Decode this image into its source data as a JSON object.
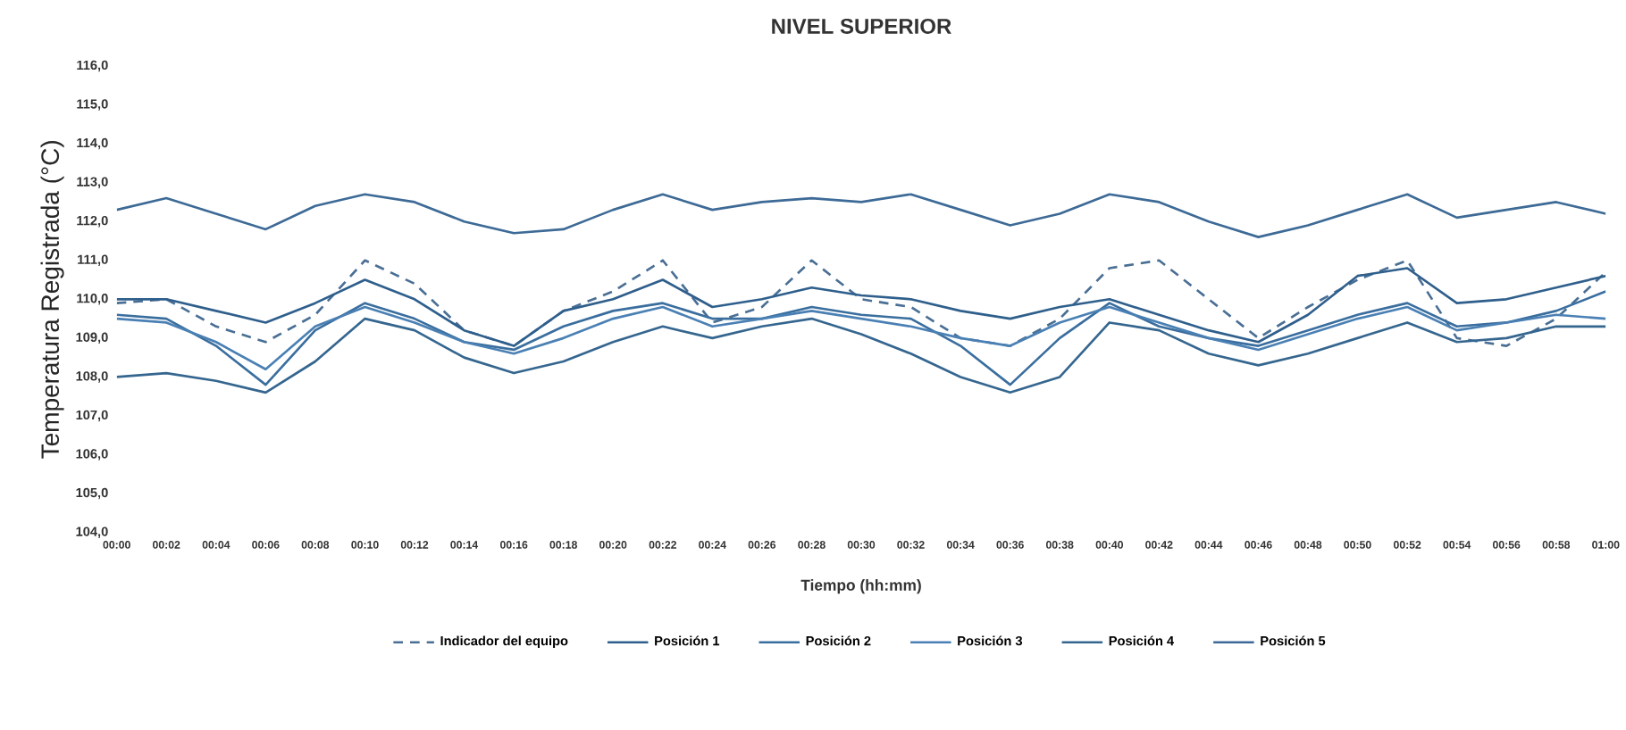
{
  "chart_data": {
    "type": "line",
    "title": "NIVEL SUPERIOR",
    "xlabel": "Tiempo (hh:mm)",
    "ylabel": "Temperatura Registrada (°C)",
    "x": [
      0,
      0.0333,
      0.0667,
      0.1,
      0.1333,
      0.1667,
      0.2,
      0.2333,
      0.2667,
      0.3,
      0.3333,
      0.3667,
      0.4,
      0.4333,
      0.4667,
      0.5,
      0.5333,
      0.5667,
      0.6,
      0.6333,
      0.6667,
      0.7,
      0.7333,
      0.7667,
      0.8,
      0.8333,
      0.8667,
      0.9,
      0.9333,
      0.9667,
      1
    ],
    "xlim": [
      0,
      1
    ],
    "xticks": [
      {
        "value": 0,
        "label": "00:00"
      },
      {
        "value": 0.0333,
        "label": "00:02"
      },
      {
        "value": 0.0667,
        "label": "00:04"
      },
      {
        "value": 0.1,
        "label": "00:06"
      },
      {
        "value": 0.1333,
        "label": "00:08"
      },
      {
        "value": 0.1667,
        "label": "00:10"
      },
      {
        "value": 0.2,
        "label": "00:12"
      },
      {
        "value": 0.2333,
        "label": "00:14"
      },
      {
        "value": 0.2667,
        "label": "00:16"
      },
      {
        "value": 0.3,
        "label": "00:18"
      },
      {
        "value": 0.3333,
        "label": "00:20"
      },
      {
        "value": 0.3667,
        "label": "00:22"
      },
      {
        "value": 0.4,
        "label": "00:24"
      },
      {
        "value": 0.4333,
        "label": "00:26"
      },
      {
        "value": 0.4667,
        "label": "00:28"
      },
      {
        "value": 0.5,
        "label": "00:30"
      },
      {
        "value": 0.5333,
        "label": "00:32"
      },
      {
        "value": 0.5667,
        "label": "00:34"
      },
      {
        "value": 0.6,
        "label": "00:36"
      },
      {
        "value": 0.6333,
        "label": "00:38"
      },
      {
        "value": 0.6667,
        "label": "00:40"
      },
      {
        "value": 0.7,
        "label": "00:42"
      },
      {
        "value": 0.7333,
        "label": "00:44"
      },
      {
        "value": 0.7667,
        "label": "00:46"
      },
      {
        "value": 0.8,
        "label": "00:48"
      },
      {
        "value": 0.8333,
        "label": "00:50"
      },
      {
        "value": 0.8667,
        "label": "00:52"
      },
      {
        "value": 0.9,
        "label": "00:54"
      },
      {
        "value": 0.9333,
        "label": "00:56"
      },
      {
        "value": 0.9667,
        "label": "00:58"
      },
      {
        "value": 1,
        "label": "01:00"
      }
    ],
    "ylim": [
      104,
      116
    ],
    "yticks": [
      {
        "value": 104,
        "label": "104,0"
      },
      {
        "value": 105,
        "label": "105,0"
      },
      {
        "value": 106,
        "label": "106,0"
      },
      {
        "value": 107,
        "label": "107,0"
      },
      {
        "value": 108,
        "label": "108,0"
      },
      {
        "value": 109,
        "label": "109,0"
      },
      {
        "value": 110,
        "label": "110,0"
      },
      {
        "value": 111,
        "label": "111,0"
      },
      {
        "value": 112,
        "label": "112,0"
      },
      {
        "value": 113,
        "label": "113,0"
      },
      {
        "value": 114,
        "label": "114,0"
      },
      {
        "value": 115,
        "label": "115,0"
      },
      {
        "value": 116,
        "label": "116,0"
      }
    ],
    "legend": "bottom",
    "series": [
      {
        "name": "Indicador del equipo",
        "color": "#4a6f95",
        "line_style": "dashed",
        "values": [
          109.9,
          110.0,
          109.3,
          108.9,
          109.6,
          111.0,
          110.4,
          109.2,
          108.8,
          109.7,
          110.2,
          111.0,
          109.4,
          109.8,
          111.0,
          110.0,
          109.8,
          109.0,
          108.8,
          109.5,
          110.8,
          111.0,
          110.0,
          109.0,
          109.8,
          110.5,
          111.0,
          109.0,
          108.8,
          109.5,
          110.7
        ]
      },
      {
        "name": "Posición 1",
        "color": "#2f5f8c",
        "line_style": "solid",
        "values": [
          110.0,
          110.0,
          109.7,
          109.4,
          109.9,
          110.5,
          110.0,
          109.2,
          108.8,
          109.7,
          110.0,
          110.5,
          109.8,
          110.0,
          110.3,
          110.1,
          110.0,
          109.7,
          109.5,
          109.8,
          110.0,
          109.6,
          109.2,
          108.9,
          109.6,
          110.6,
          110.8,
          109.9,
          110.0,
          110.3,
          110.6
        ]
      },
      {
        "name": "Posición 2",
        "color": "#3a6e9e",
        "line_style": "solid",
        "values": [
          109.6,
          109.5,
          108.8,
          107.8,
          109.2,
          109.9,
          109.5,
          108.9,
          108.7,
          109.3,
          109.7,
          109.9,
          109.5,
          109.5,
          109.8,
          109.6,
          109.5,
          108.8,
          107.8,
          109.0,
          109.9,
          109.3,
          109.0,
          108.8,
          109.2,
          109.6,
          109.9,
          109.3,
          109.4,
          109.7,
          110.2
        ]
      },
      {
        "name": "Posición 3",
        "color": "#4a80b4",
        "line_style": "solid",
        "values": [
          109.5,
          109.4,
          108.9,
          108.2,
          109.3,
          109.8,
          109.4,
          108.9,
          108.6,
          109.0,
          109.5,
          109.8,
          109.3,
          109.5,
          109.7,
          109.5,
          109.3,
          109.0,
          108.8,
          109.4,
          109.8,
          109.4,
          109.0,
          108.7,
          109.1,
          109.5,
          109.8,
          109.2,
          109.4,
          109.6,
          109.5
        ]
      },
      {
        "name": "Posición 4",
        "color": "#35668f",
        "line_style": "solid",
        "values": [
          108.0,
          108.1,
          107.9,
          107.6,
          108.4,
          109.5,
          109.2,
          108.5,
          108.1,
          108.4,
          108.9,
          109.3,
          109.0,
          109.3,
          109.5,
          109.1,
          108.6,
          108.0,
          107.6,
          108.0,
          109.4,
          109.2,
          108.6,
          108.3,
          108.6,
          109.0,
          109.4,
          108.9,
          109.0,
          109.3,
          109.3
        ]
      },
      {
        "name": "Posición 5",
        "color": "#3d6a96",
        "line_style": "solid",
        "values": [
          112.3,
          112.6,
          112.2,
          111.8,
          112.4,
          112.7,
          112.5,
          112.0,
          111.7,
          111.8,
          112.3,
          112.7,
          112.3,
          112.5,
          112.6,
          112.5,
          112.7,
          112.3,
          111.9,
          112.2,
          112.7,
          112.5,
          112.0,
          111.6,
          111.9,
          112.3,
          112.7,
          112.1,
          112.3,
          112.5,
          112.2
        ]
      }
    ]
  }
}
